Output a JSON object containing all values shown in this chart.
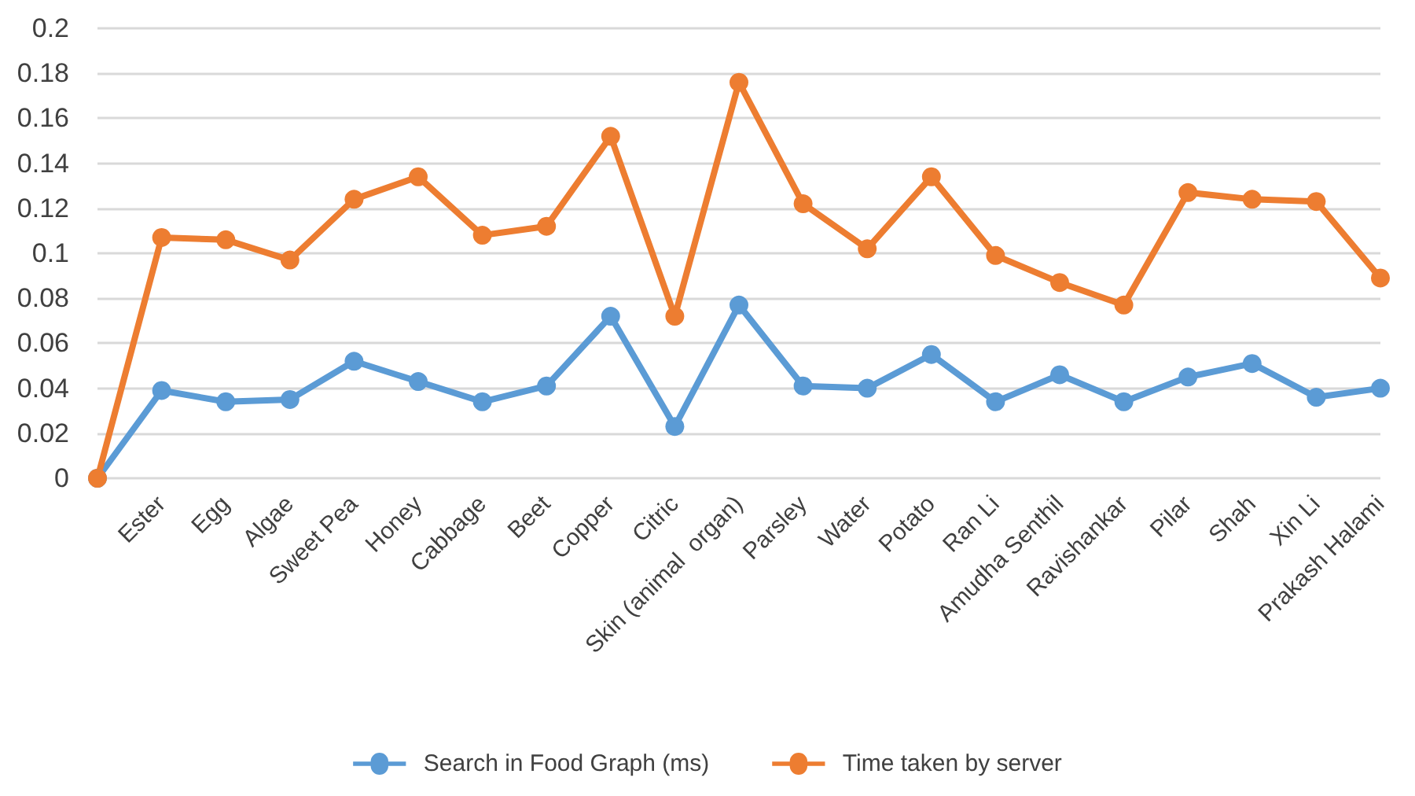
{
  "chart_data": {
    "type": "line",
    "categories": [
      null,
      "Ester",
      "Egg",
      "Algae",
      "Sweet Pea",
      "Honey",
      "Cabbage",
      "Beet",
      "Copper",
      "Citric",
      "Skin (animal  organ)",
      "Parsley",
      "Water",
      "Potato",
      "Ran Li",
      "Amudha Senthil",
      "Ravishankar",
      "Pilar",
      "Shah",
      "Xin Li",
      "Prakash Halami"
    ],
    "series": [
      {
        "name": "Search in Food Graph (ms)",
        "color": "#5b9bd5",
        "values": [
          0,
          0.039,
          0.034,
          0.035,
          0.052,
          0.043,
          0.034,
          0.041,
          0.072,
          0.023,
          0.077,
          0.041,
          0.04,
          0.055,
          0.034,
          0.046,
          0.034,
          0.045,
          0.051,
          0.036,
          0.04
        ]
      },
      {
        "name": "Time taken by server",
        "color": "#ed7d31",
        "values": [
          0,
          0.107,
          0.106,
          0.097,
          0.124,
          0.134,
          0.108,
          0.112,
          0.152,
          0.072,
          0.176,
          0.122,
          0.102,
          0.134,
          0.099,
          0.087,
          0.077,
          0.127,
          0.124,
          0.123,
          0.089
        ]
      }
    ],
    "ylim": [
      0,
      0.2
    ],
    "yticks": [
      0,
      0.02,
      0.04,
      0.06,
      0.08,
      0.1,
      0.12,
      0.14,
      0.16,
      0.18,
      0.2
    ],
    "grid": "y",
    "legend": "bottom",
    "marker": "circle",
    "line_style": "solid"
  }
}
